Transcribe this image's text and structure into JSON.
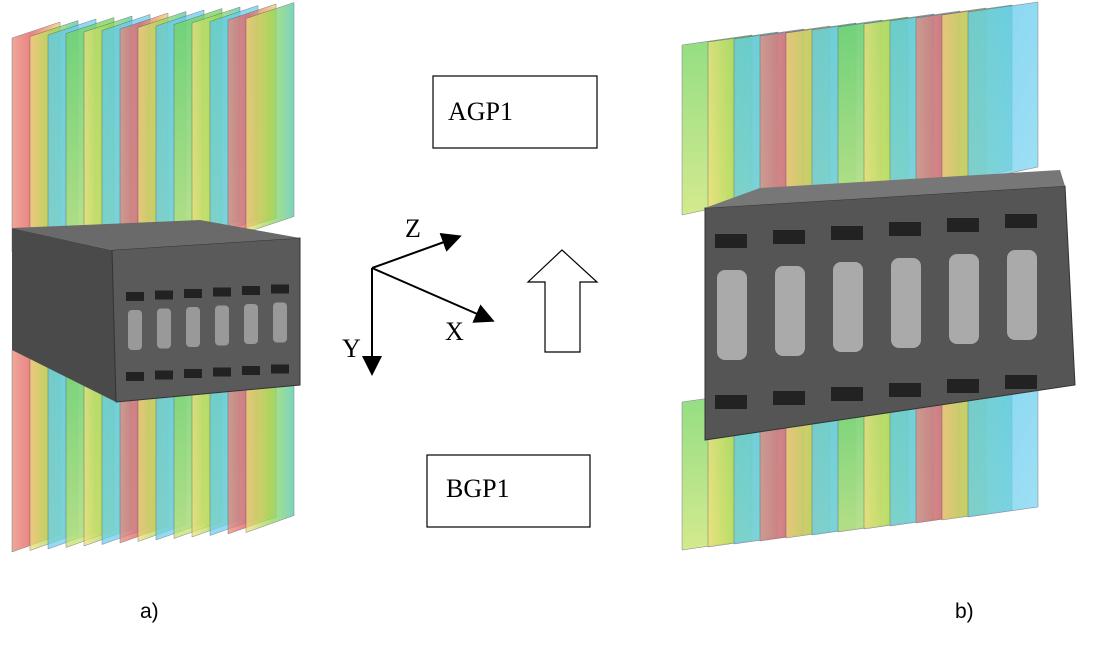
{
  "labels": {
    "top_box": "AGP1",
    "bottom_box": "BGP1",
    "axis_z": "Z",
    "axis_x": "X",
    "axis_y": "Y"
  },
  "captions": [
    "a)",
    "b)"
  ]
}
